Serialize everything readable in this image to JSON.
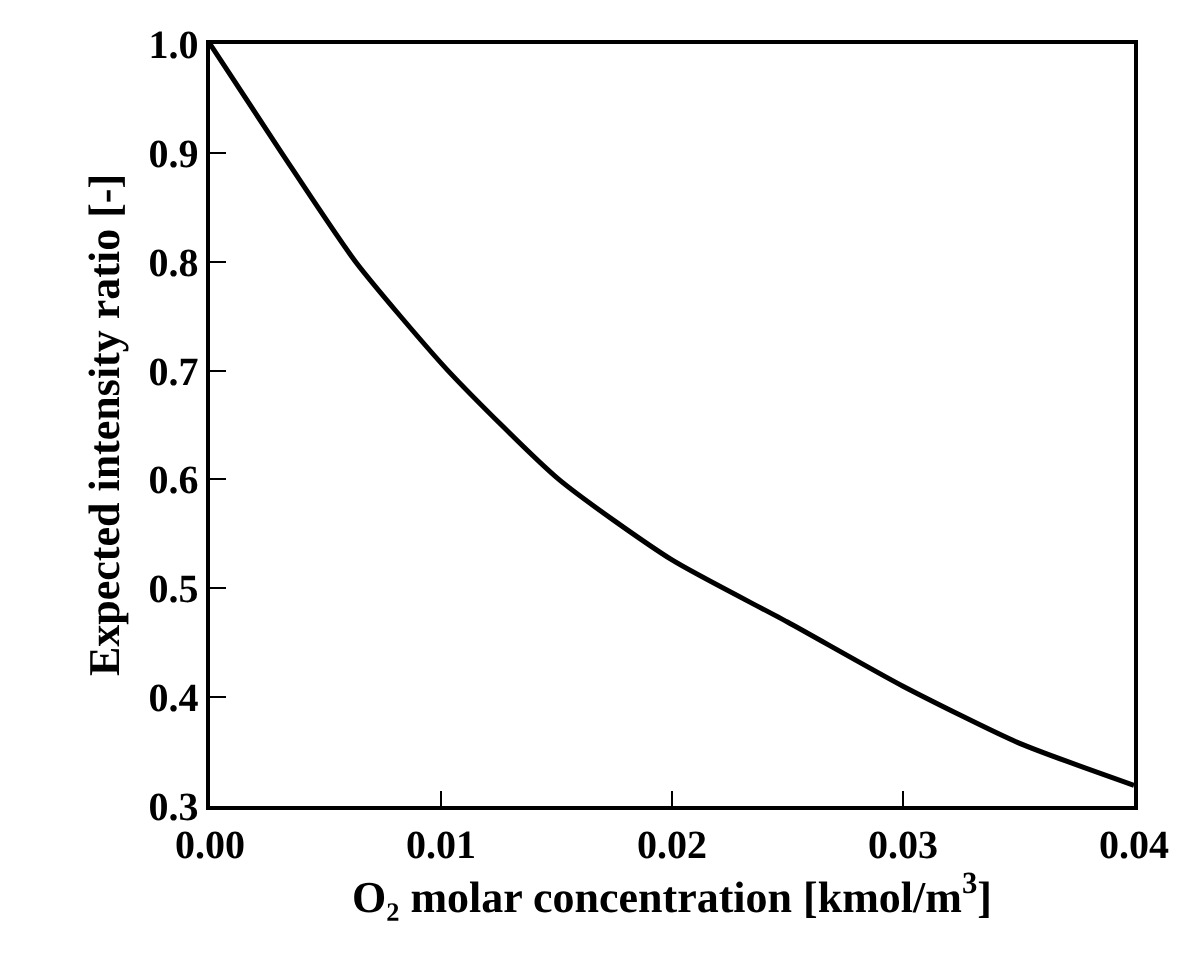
{
  "chart_data": {
    "type": "line",
    "xlabel": "O₂ molar concentration [kmol/m$^{3}$]",
    "ylabel": "Expected intensity ratio [-]",
    "x": [
      0,
      0.0031,
      0.0063,
      0.0103,
      0.0151,
      0.02,
      0.025,
      0.03,
      0.035,
      0.04
    ],
    "series": [
      {
        "color": "#000000",
        "values": [
          1.0,
          0.9,
          0.8,
          0.7,
          0.6,
          0.526,
          0.469,
          0.41,
          0.358,
          0.319
        ]
      }
    ],
    "xlim": [
      0,
      0.04
    ],
    "xticks": [
      "0.00",
      0.01,
      0.02,
      0.03,
      0.04
    ],
    "ylim": [
      0.3,
      1.0
    ],
    "yticks": [
      0.3,
      0.4,
      0.5,
      0.6,
      0.7,
      0.8,
      0.9,
      "1.0"
    ],
    "grid": false,
    "marker": "none",
    "line_style": "solid"
  }
}
